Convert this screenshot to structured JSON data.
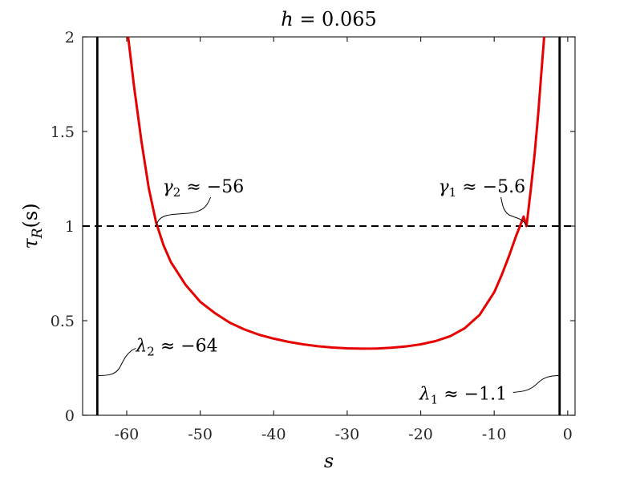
{
  "chart_data": {
    "type": "line",
    "title": {
      "var": "h",
      "rest": " = 0.065"
    },
    "xlabel": "s",
    "ylabel": {
      "main": "τ",
      "sub": "R",
      "arg": "(s)"
    },
    "xlim": [
      -66,
      1
    ],
    "ylim": [
      0,
      2
    ],
    "x_ticks": [
      -60,
      -50,
      -40,
      -30,
      -20,
      -10,
      0
    ],
    "x_tick_labels": [
      "-60",
      "-50",
      "-40",
      "-30",
      "-20",
      "-10",
      "0"
    ],
    "y_ticks": [
      0,
      0.5,
      1,
      1.5,
      2
    ],
    "y_tick_labels": [
      "0",
      "0.5",
      "1",
      "1.5",
      "2"
    ],
    "series": [
      {
        "color": "#e60000",
        "x": [
          -59.8,
          -59,
          -58,
          -57,
          -56,
          -55,
          -54,
          -52,
          -50,
          -48,
          -46,
          -44,
          -42,
          -40,
          -38,
          -36,
          -34,
          -32,
          -30,
          -28,
          -26,
          -24,
          -22,
          -20,
          -18,
          -16,
          -14,
          -12,
          -10,
          -9,
          -8,
          -7,
          -6,
          -5.6,
          -5,
          -4.5,
          -4,
          -3.6,
          -3.2
        ],
        "y": [
          2.0,
          1.74,
          1.45,
          1.2,
          1.02,
          0.9,
          0.81,
          0.69,
          0.6,
          0.54,
          0.49,
          0.454,
          0.426,
          0.405,
          0.388,
          0.375,
          0.365,
          0.358,
          0.354,
          0.352,
          0.353,
          0.357,
          0.364,
          0.375,
          0.392,
          0.418,
          0.46,
          0.53,
          0.65,
          0.74,
          0.84,
          0.95,
          1.05,
          1.0,
          1.2,
          1.38,
          1.6,
          1.8,
          2.0
        ]
      }
    ],
    "reference_lines": [
      {
        "orientation": "horizontal",
        "value": 1,
        "style": "dashed",
        "color": "#000000"
      },
      {
        "orientation": "vertical",
        "value": -64,
        "style": "solid",
        "color": "#000000"
      },
      {
        "orientation": "vertical",
        "value": -1.1,
        "style": "solid",
        "color": "#000000"
      }
    ],
    "annotations": [
      {
        "main": "γ",
        "sub": "2",
        "rest": " ≈ −56",
        "point": [
          -56,
          1
        ],
        "text_at": [
          -52,
          1.2
        ]
      },
      {
        "main": "γ",
        "sub": "1",
        "rest": " ≈ −5.6",
        "point": [
          -5.6,
          1
        ],
        "text_at": [
          -6.5,
          1.2
        ]
      },
      {
        "main": "λ",
        "sub": "2",
        "rest": " ≈ −64",
        "point": [
          -64,
          0.21
        ],
        "text_at": [
          -60.5,
          0.34
        ]
      },
      {
        "main": "λ",
        "sub": "1",
        "rest": " ≈ −1.1",
        "point": [
          -1.1,
          0.21
        ],
        "text_at": [
          -5.5,
          0.1
        ]
      }
    ],
    "grid": false,
    "legend": "none"
  }
}
